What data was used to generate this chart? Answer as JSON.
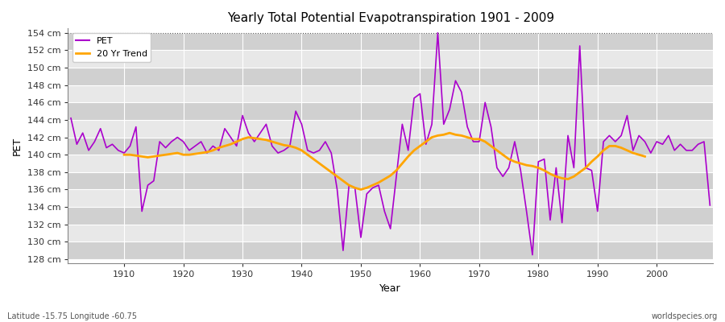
{
  "title": "Yearly Total Potential Evapotranspiration 1901 - 2009",
  "xlabel": "Year",
  "ylabel": "PET",
  "bottom_left_label": "Latitude -15.75 Longitude -60.75",
  "bottom_right_label": "worldspecies.org",
  "pet_color": "#AA00CC",
  "trend_color": "#FFA500",
  "bg_color": "#DCDCDC",
  "band_color_light": "#E8E8E8",
  "band_color_dark": "#D0D0D0",
  "ylim": [
    127.5,
    154.5
  ],
  "years": [
    1901,
    1902,
    1903,
    1904,
    1905,
    1906,
    1907,
    1908,
    1909,
    1910,
    1911,
    1912,
    1913,
    1914,
    1915,
    1916,
    1917,
    1918,
    1919,
    1920,
    1921,
    1922,
    1923,
    1924,
    1925,
    1926,
    1927,
    1928,
    1929,
    1930,
    1931,
    1932,
    1933,
    1934,
    1935,
    1936,
    1937,
    1938,
    1939,
    1940,
    1941,
    1942,
    1943,
    1944,
    1945,
    1946,
    1947,
    1948,
    1949,
    1950,
    1951,
    1952,
    1953,
    1954,
    1955,
    1956,
    1957,
    1958,
    1959,
    1960,
    1961,
    1962,
    1963,
    1964,
    1965,
    1966,
    1967,
    1968,
    1969,
    1970,
    1971,
    1972,
    1973,
    1974,
    1975,
    1976,
    1977,
    1978,
    1979,
    1980,
    1981,
    1982,
    1983,
    1984,
    1985,
    1986,
    1987,
    1988,
    1989,
    1990,
    1991,
    1992,
    1993,
    1994,
    1995,
    1996,
    1997,
    1998,
    1999,
    2000,
    2001,
    2002,
    2003,
    2004,
    2005,
    2006,
    2007,
    2008,
    2009
  ],
  "pet_values": [
    144.2,
    141.2,
    142.5,
    140.5,
    141.5,
    143.0,
    140.8,
    141.2,
    140.5,
    140.2,
    141.0,
    143.2,
    133.5,
    136.5,
    137.0,
    141.5,
    140.8,
    141.5,
    142.0,
    141.5,
    140.5,
    141.0,
    141.5,
    140.2,
    141.0,
    140.5,
    143.0,
    142.0,
    141.0,
    144.5,
    142.5,
    141.5,
    142.5,
    143.5,
    141.0,
    140.2,
    140.5,
    141.0,
    145.0,
    143.5,
    140.5,
    140.2,
    140.5,
    141.5,
    140.2,
    136.0,
    129.0,
    136.5,
    136.2,
    130.5,
    135.5,
    136.2,
    136.5,
    133.5,
    131.5,
    137.5,
    143.5,
    140.5,
    146.5,
    147.0,
    141.2,
    143.5,
    154.0,
    143.5,
    145.2,
    148.5,
    147.2,
    143.2,
    141.5,
    141.5,
    146.0,
    143.2,
    138.5,
    137.5,
    138.5,
    141.5,
    138.2,
    133.5,
    128.5,
    139.2,
    139.5,
    132.5,
    138.5,
    132.2,
    142.2,
    138.5,
    152.5,
    138.5,
    138.2,
    133.5,
    141.5,
    142.2,
    141.5,
    142.2,
    144.5,
    140.5,
    142.2,
    141.5,
    140.2,
    141.5,
    141.2,
    142.2,
    140.5,
    141.2,
    140.5,
    140.5,
    141.2,
    141.5,
    134.2
  ],
  "trend_values": [
    null,
    null,
    null,
    null,
    null,
    null,
    null,
    null,
    null,
    140.0,
    140.0,
    139.9,
    139.8,
    139.7,
    139.8,
    139.9,
    140.0,
    140.1,
    140.2,
    140.0,
    140.0,
    140.1,
    140.2,
    140.3,
    140.5,
    140.8,
    141.0,
    141.2,
    141.5,
    141.8,
    142.0,
    141.9,
    141.8,
    141.7,
    141.5,
    141.3,
    141.1,
    141.0,
    140.8,
    140.5,
    140.0,
    139.5,
    139.0,
    138.5,
    138.0,
    137.5,
    137.0,
    136.5,
    136.2,
    136.0,
    136.2,
    136.5,
    136.8,
    137.2,
    137.6,
    138.2,
    139.0,
    139.8,
    140.5,
    141.0,
    141.5,
    142.0,
    142.2,
    142.3,
    142.5,
    142.3,
    142.2,
    142.0,
    141.8,
    141.8,
    141.5,
    141.0,
    140.5,
    140.0,
    139.5,
    139.2,
    139.0,
    138.8,
    138.7,
    138.5,
    138.2,
    137.8,
    137.5,
    137.3,
    137.2,
    137.5,
    138.0,
    138.5,
    139.2,
    139.8,
    140.5,
    141.0,
    141.0,
    140.8,
    140.5,
    140.2,
    140.0,
    139.8,
    null,
    null,
    null,
    null,
    null,
    null,
    null,
    null,
    null
  ],
  "yticks": [
    128,
    130,
    132,
    134,
    136,
    138,
    140,
    142,
    144,
    146,
    148,
    150,
    152,
    154
  ],
  "xticks": [
    1910,
    1920,
    1930,
    1940,
    1950,
    1960,
    1970,
    1980,
    1990,
    2000
  ]
}
